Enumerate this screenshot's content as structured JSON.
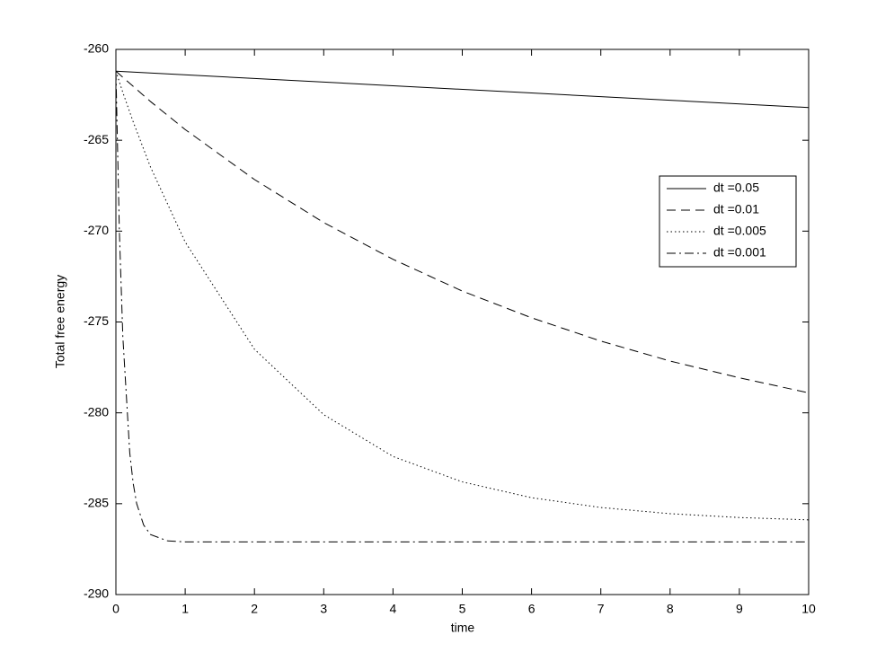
{
  "chart_data": {
    "type": "line",
    "xlabel": "time",
    "ylabel": "Total free energy",
    "xlim": [
      0,
      10
    ],
    "ylim": [
      -290,
      -260
    ],
    "xticks": [
      0,
      1,
      2,
      3,
      4,
      5,
      6,
      7,
      8,
      9,
      10
    ],
    "yticks": [
      -290,
      -285,
      -280,
      -275,
      -270,
      -265,
      -260
    ],
    "grid": false,
    "legend": "right",
    "series": [
      {
        "name": "dt =0.05",
        "color": "#000000",
        "line_style": "solid",
        "x": [
          0,
          2,
          4,
          6,
          8,
          10
        ],
        "values": [
          -261.2,
          -261.6,
          -262.0,
          -262.4,
          -262.8,
          -263.2
        ]
      },
      {
        "name": "dt =0.01",
        "color": "#000000",
        "line_style": "dashed",
        "x": [
          0,
          0.5,
          1,
          2,
          3,
          4,
          5,
          6,
          7,
          8,
          9,
          10
        ],
        "values": [
          -261.2,
          -262.87,
          -264.41,
          -267.16,
          -269.53,
          -271.55,
          -273.3,
          -274.77,
          -276.05,
          -277.15,
          -278.07,
          -278.9
        ]
      },
      {
        "name": "dt =0.005",
        "color": "#000000",
        "line_style": "dotted",
        "x": [
          0,
          0.1,
          0.25,
          0.5,
          1,
          2,
          3,
          4,
          5,
          6,
          7,
          8,
          9,
          10
        ],
        "values": [
          -261.2,
          -262.37,
          -263.99,
          -266.48,
          -270.6,
          -276.5,
          -280.1,
          -282.4,
          -283.8,
          -284.67,
          -285.21,
          -285.55,
          -285.76,
          -285.89
        ]
      },
      {
        "name": "dt =0.001",
        "color": "#000000",
        "line_style": "dashdot",
        "x": [
          0,
          0.05,
          0.1,
          0.2,
          0.25,
          0.3,
          0.4,
          0.5,
          0.75,
          1,
          2,
          4,
          6,
          8,
          10
        ],
        "values": [
          -261.2,
          -270.0,
          -275.8,
          -282.2,
          -283.9,
          -285.0,
          -286.17,
          -286.7,
          -287.05,
          -287.1,
          -287.1,
          -287.1,
          -287.1,
          -287.1,
          -287.1
        ]
      }
    ]
  }
}
